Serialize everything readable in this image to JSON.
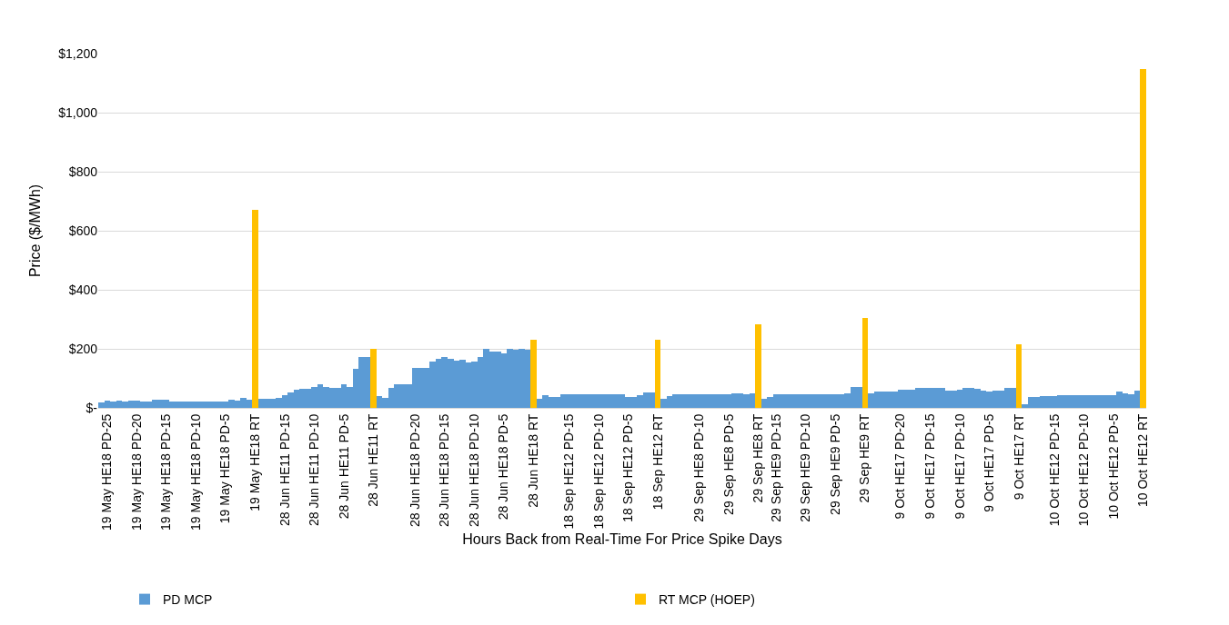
{
  "chart_data": {
    "type": "bar",
    "xlabel": "Hours Back from Real-Time For Price Spike Days",
    "ylabel": "Price ($/MWh)",
    "categories": [
      null,
      "19 May HE18 PD-25",
      null,
      null,
      null,
      null,
      "19 May HE18 PD-20",
      null,
      null,
      null,
      null,
      "19 May HE18 PD-15",
      null,
      null,
      null,
      null,
      "19 May HE18 PD-10",
      null,
      null,
      null,
      null,
      "19 May HE18 PD-5",
      null,
      null,
      null,
      null,
      "19 May HE18 RT",
      null,
      null,
      null,
      null,
      "28 Jun HE11 PD-15",
      null,
      null,
      null,
      null,
      "28 Jun HE11 PD-10",
      null,
      null,
      null,
      null,
      "28 Jun HE11 PD-5",
      null,
      null,
      null,
      null,
      "28 Jun HE11 RT",
      null,
      null,
      null,
      null,
      null,
      null,
      "28 Jun HE18 PD-20",
      null,
      null,
      null,
      null,
      "28 Jun HE18 PD-15",
      null,
      null,
      null,
      null,
      "28 Jun HE18 PD-10",
      null,
      null,
      null,
      null,
      "28 Jun HE18 PD-5",
      null,
      null,
      null,
      null,
      "28 Jun HE18 RT",
      null,
      null,
      null,
      null,
      null,
      "18 Sep HE12 PD-15",
      null,
      null,
      null,
      null,
      "18 Sep HE12 PD-10",
      null,
      null,
      null,
      null,
      "18 Sep HE12 PD-5",
      null,
      null,
      null,
      null,
      "18 Sep HE12 RT",
      null,
      null,
      null,
      null,
      null,
      null,
      "29 Sep HE8 PD-10",
      null,
      null,
      null,
      null,
      "29 Sep HE8 PD-5",
      null,
      null,
      null,
      null,
      "29 Sep HE8 RT",
      null,
      null,
      "29 Sep HE9 PD-15",
      null,
      null,
      null,
      null,
      "29 Sep HE9 PD-10",
      null,
      null,
      null,
      null,
      "29 Sep HE9 PD-5",
      null,
      null,
      null,
      null,
      "29 Sep HE9 RT",
      null,
      null,
      null,
      null,
      null,
      "9 Oct HE17 PD-20",
      null,
      null,
      null,
      null,
      "9 Oct HE17 PD-15",
      null,
      null,
      null,
      null,
      "9 Oct HE17 PD-10",
      null,
      null,
      null,
      null,
      "9 Oct HE17 PD-5",
      null,
      null,
      null,
      null,
      "9 Oct HE17 RT",
      null,
      null,
      null,
      null,
      null,
      "10 Oct HE12 PD-15",
      null,
      null,
      null,
      null,
      "10 Oct HE12 PD-10",
      null,
      null,
      null,
      null,
      "10 Oct HE12 PD-5",
      null,
      null,
      null,
      null,
      "10 Oct HE12 RT"
    ],
    "series": [
      {
        "name": "PD MCP",
        "color": "#5b9bd5",
        "values": [
          20,
          25,
          21,
          25,
          21,
          25,
          25,
          21,
          21,
          27,
          27,
          27,
          23,
          23,
          23,
          23,
          23,
          23,
          23,
          23,
          23,
          23,
          27,
          25,
          35,
          29,
          null,
          32,
          32,
          32,
          35,
          43,
          52,
          62,
          65,
          65,
          70,
          79,
          72,
          68,
          68,
          79,
          72,
          131,
          173,
          173,
          null,
          41,
          35,
          68,
          79,
          79,
          79,
          136,
          136,
          136,
          158,
          167,
          173,
          167,
          161,
          163,
          153,
          158,
          173,
          200,
          191,
          191,
          185,
          200,
          196,
          200,
          196,
          null,
          32,
          43,
          38,
          38,
          47,
          47,
          47,
          47,
          47,
          47,
          47,
          47,
          47,
          47,
          47,
          38,
          38,
          43,
          52,
          52,
          null,
          32,
          41,
          47,
          47,
          47,
          47,
          47,
          47,
          47,
          47,
          47,
          47,
          50,
          50,
          47,
          50,
          null,
          32,
          38,
          47,
          47,
          47,
          47,
          47,
          47,
          47,
          47,
          47,
          47,
          47,
          47,
          49,
          72,
          72,
          null,
          50,
          54,
          54,
          54,
          54,
          62,
          62,
          62,
          68,
          68,
          68,
          68,
          68,
          60,
          60,
          62,
          68,
          68,
          66,
          60,
          54,
          60,
          58,
          68,
          68,
          null,
          11,
          38,
          38,
          41,
          41,
          41,
          43,
          43,
          43,
          43,
          43,
          43,
          43,
          43,
          43,
          43,
          54,
          49,
          47,
          58,
          null
        ]
      },
      {
        "name": "RT MCP (HOEP)",
        "color": "#ffc000",
        "values": [
          null,
          null,
          null,
          null,
          null,
          null,
          null,
          null,
          null,
          null,
          null,
          null,
          null,
          null,
          null,
          null,
          null,
          null,
          null,
          null,
          null,
          null,
          null,
          null,
          null,
          null,
          670,
          null,
          null,
          null,
          null,
          null,
          null,
          null,
          null,
          null,
          null,
          null,
          null,
          null,
          null,
          null,
          null,
          null,
          null,
          null,
          200,
          null,
          null,
          null,
          null,
          null,
          null,
          null,
          null,
          null,
          null,
          null,
          null,
          null,
          null,
          null,
          null,
          null,
          null,
          null,
          null,
          null,
          null,
          null,
          null,
          null,
          null,
          230,
          null,
          null,
          null,
          null,
          null,
          null,
          null,
          null,
          null,
          null,
          null,
          null,
          null,
          null,
          null,
          null,
          null,
          null,
          null,
          null,
          230,
          null,
          null,
          null,
          null,
          null,
          null,
          null,
          null,
          null,
          null,
          null,
          null,
          null,
          null,
          null,
          null,
          282,
          null,
          null,
          null,
          null,
          null,
          null,
          null,
          null,
          null,
          null,
          null,
          null,
          null,
          null,
          null,
          null,
          null,
          305,
          null,
          null,
          null,
          null,
          null,
          null,
          null,
          null,
          null,
          null,
          null,
          null,
          null,
          null,
          null,
          null,
          null,
          null,
          null,
          null,
          null,
          null,
          null,
          null,
          null,
          215,
          null,
          null,
          null,
          null,
          null,
          null,
          null,
          null,
          null,
          null,
          null,
          null,
          null,
          null,
          null,
          null,
          null,
          null,
          null,
          null,
          1148
        ]
      }
    ],
    "ylim": [
      0,
      1200
    ],
    "yticks": [
      {
        "value": 0,
        "label": "$-"
      },
      {
        "value": 200,
        "label": "$200"
      },
      {
        "value": 400,
        "label": "$400"
      },
      {
        "value": 600,
        "label": "$600"
      },
      {
        "value": 800,
        "label": "$800"
      },
      {
        "value": 1000,
        "label": "$1,000"
      },
      {
        "value": 1200,
        "label": "$1,200"
      }
    ],
    "grid": "y",
    "legend": "bottom"
  }
}
